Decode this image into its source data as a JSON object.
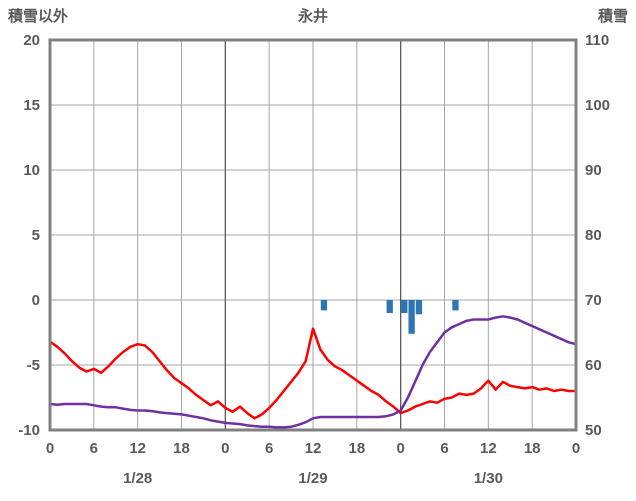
{
  "header": {
    "left": "積雪以外",
    "center": "永井",
    "right": "積雪"
  },
  "colors": {
    "temperature_line": "#ff0000",
    "snow_depth_line": "#7030a0",
    "snowfall_bars": "#2e75b6",
    "frame": "#808080",
    "grid_minor": "#a6a6a6",
    "grid_day": "#595959",
    "axis_text": "#595959"
  },
  "chart_data": {
    "type": "line",
    "title": "永井",
    "left_axis": {
      "label": "積雪以外",
      "min": -10,
      "max": 20,
      "ticks": [
        20,
        15,
        10,
        5,
        0,
        -5,
        -10
      ]
    },
    "right_axis": {
      "label": "積雪",
      "min": 50,
      "max": 110,
      "ticks": [
        110,
        100,
        90,
        80,
        70,
        60,
        50
      ]
    },
    "x_axis": {
      "hours_total": 72,
      "tick_step": 6,
      "tick_labels": [
        "0",
        "6",
        "12",
        "18",
        "0",
        "6",
        "12",
        "18",
        "0",
        "6",
        "12",
        "18",
        "0"
      ],
      "date_labels": [
        "1/28",
        "1/29",
        "1/30"
      ],
      "grid": true
    },
    "legend_position": "none",
    "series": [
      {
        "name": "temperature",
        "axis": "left",
        "color": "#ff0000",
        "values": [
          -3.2,
          -3.6,
          -4.1,
          -4.7,
          -5.2,
          -5.5,
          -5.3,
          -5.6,
          -5.1,
          -4.5,
          -4.0,
          -3.6,
          -3.4,
          -3.5,
          -4.0,
          -4.7,
          -5.4,
          -6.0,
          -6.4,
          -6.8,
          -7.3,
          -7.7,
          -8.1,
          -7.8,
          -8.3,
          -8.6,
          -8.2,
          -8.7,
          -9.1,
          -8.8,
          -8.3,
          -7.7,
          -7.0,
          -6.3,
          -5.6,
          -4.7,
          -2.2,
          -3.8,
          -4.6,
          -5.1,
          -5.4,
          -5.8,
          -6.2,
          -6.6,
          -7.0,
          -7.3,
          -7.8,
          -8.2,
          -8.7,
          -8.5,
          -8.2,
          -8.0,
          -7.8,
          -7.9,
          -7.6,
          -7.5,
          -7.2,
          -7.3,
          -7.2,
          -6.8,
          -6.2,
          -6.9,
          -6.3,
          -6.6,
          -6.7,
          -6.8,
          -6.7,
          -6.9,
          -6.8,
          -7.0,
          -6.9,
          -7.0,
          -7.0
        ]
      },
      {
        "name": "snow-depth",
        "axis": "right",
        "color": "#7030a0",
        "values": [
          54.0,
          53.9,
          54.0,
          54.0,
          54.0,
          54.0,
          53.8,
          53.6,
          53.5,
          53.5,
          53.3,
          53.1,
          53.0,
          53.0,
          52.9,
          52.7,
          52.6,
          52.5,
          52.4,
          52.2,
          52.0,
          51.8,
          51.5,
          51.3,
          51.1,
          51.0,
          50.9,
          50.7,
          50.6,
          50.5,
          50.5,
          50.4,
          50.4,
          50.5,
          50.8,
          51.2,
          51.8,
          52.0,
          52.0,
          52.0,
          52.0,
          52.0,
          52.0,
          52.0,
          52.0,
          52.0,
          52.1,
          52.4,
          53.0,
          55.0,
          57.5,
          60.0,
          62.0,
          63.5,
          65.0,
          65.8,
          66.3,
          66.8,
          67.0,
          67.0,
          67.0,
          67.3,
          67.5,
          67.3,
          67.0,
          66.5,
          66.0,
          65.5,
          65.0,
          64.5,
          64.0,
          63.5,
          63.2
        ]
      }
    ],
    "bars": {
      "name": "snowfall",
      "axis": "left",
      "color": "#2e75b6",
      "baseline": 0,
      "points": [
        {
          "hour": 37,
          "value": -0.8
        },
        {
          "hour": 46,
          "value": -1.0
        },
        {
          "hour": 48,
          "value": -1.0
        },
        {
          "hour": 49,
          "value": -2.6
        },
        {
          "hour": 50,
          "value": -1.1
        },
        {
          "hour": 55,
          "value": -0.8
        }
      ]
    }
  }
}
